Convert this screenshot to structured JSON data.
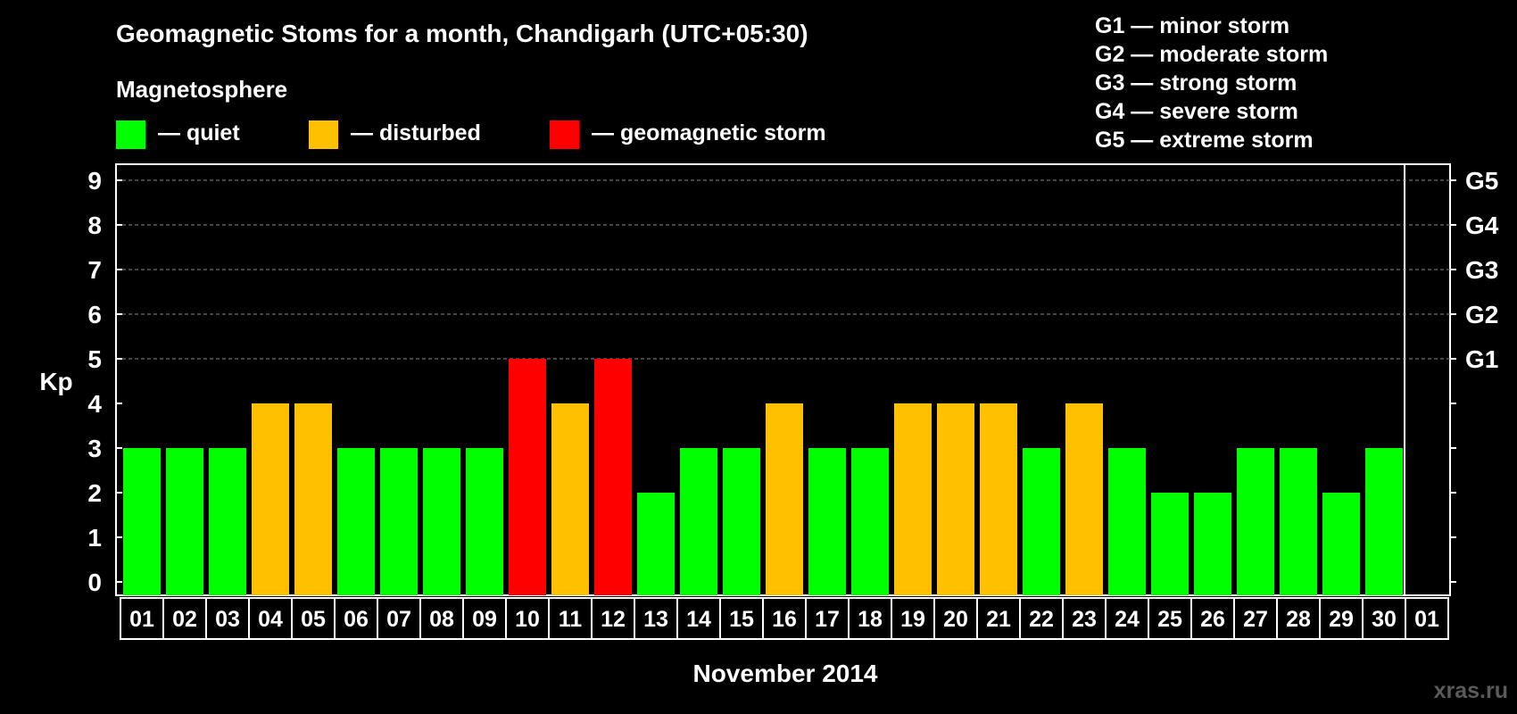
{
  "chart_data": {
    "type": "bar",
    "title": "Geomagnetic Stoms for a month, Chandigarh (UTC+05:30)",
    "subtitle": "Magnetosphere",
    "legend": [
      {
        "key": "quiet",
        "label": "— quiet",
        "color": "#00ff00"
      },
      {
        "key": "disturbed",
        "label": "— disturbed",
        "color": "#ffc000"
      },
      {
        "key": "storm",
        "label": "— geomagnetic storm",
        "color": "#ff0000"
      }
    ],
    "storm_scale_legend": [
      "G1 — minor storm",
      "G2 — moderate storm",
      "G3 — strong storm",
      "G4 — severe storm",
      "G5 — extreme storm"
    ],
    "ylabel": "Kp",
    "xlabel": "November 2014",
    "ylim": [
      0,
      9
    ],
    "yticks": [
      "0",
      "1",
      "2",
      "3",
      "4",
      "5",
      "6",
      "7",
      "8",
      "9"
    ],
    "right_ticks": [
      {
        "value": 5,
        "label": "G1"
      },
      {
        "value": 6,
        "label": "G2"
      },
      {
        "value": 7,
        "label": "G3"
      },
      {
        "value": 8,
        "label": "G4"
      },
      {
        "value": 9,
        "label": "G5"
      }
    ],
    "grid": "dashed at Kp 5-9",
    "categories": [
      "01",
      "02",
      "03",
      "04",
      "05",
      "06",
      "07",
      "08",
      "09",
      "10",
      "11",
      "12",
      "13",
      "14",
      "15",
      "16",
      "17",
      "18",
      "19",
      "20",
      "21",
      "22",
      "23",
      "24",
      "25",
      "26",
      "27",
      "28",
      "29",
      "30",
      "01"
    ],
    "values": [
      3,
      3,
      3,
      4,
      4,
      3,
      3,
      3,
      3,
      5,
      4,
      5,
      2,
      3,
      3,
      4,
      3,
      3,
      4,
      4,
      4,
      3,
      4,
      3,
      2,
      2,
      3,
      3,
      2,
      3,
      null
    ],
    "status_colors": {
      "quiet": "#00ff00",
      "disturbed": "#ffc000",
      "storm": "#ff0000"
    }
  },
  "watermark": "xras.ru"
}
